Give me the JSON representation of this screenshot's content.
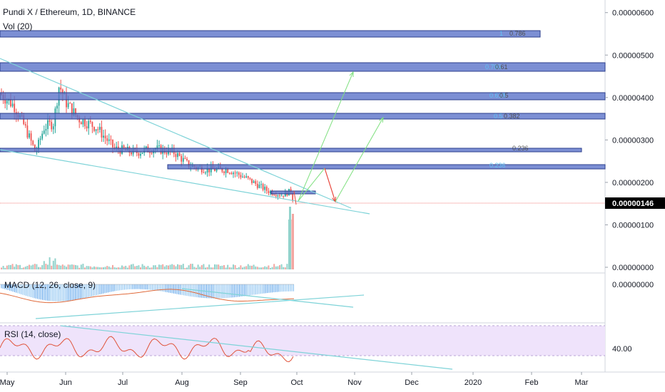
{
  "header": {
    "symbol_line": "Pundi X / Ethereum, 1D, BINANCE",
    "volume_label": "Vol (20)"
  },
  "panes": {
    "macd_label": "MACD (12, 26, close, 9)",
    "rsi_label": "RSI (14, close)"
  },
  "price_axis": {
    "ticks": [
      "0.00000600",
      "0.00000500",
      "0.00000400",
      "0.00000300",
      "0.00000200",
      "0.00000100",
      "0.00000000"
    ],
    "current_price": "0.00000146",
    "current_price_color": "#ef5350"
  },
  "macd_axis": {
    "ticks": [
      "0.00000000"
    ]
  },
  "rsi_axis": {
    "ticks": [
      "40.00"
    ]
  },
  "time_axis": {
    "labels": [
      "May",
      "Jun",
      "Jul",
      "Aug",
      "Sep",
      "Oct",
      "Nov",
      "Dec",
      "2020",
      "Feb",
      "Mar"
    ]
  },
  "fib_levels": [
    {
      "ratio": "1",
      "price_text": "0.786"
    },
    {
      "ratio": "0.786",
      "price_text": "0.61"
    },
    {
      "ratio": "0.618",
      "price_text": "0.5"
    },
    {
      "ratio": "0.5",
      "price_text": "0.382"
    },
    {
      "ratio": "",
      "price_text": "0.236"
    },
    {
      "ratio": "0.236",
      "price_text": ""
    }
  ],
  "colors": {
    "up": "#26a69a",
    "down": "#ef5350",
    "zone_fill": "#5b73c9",
    "zone_edge": "#2c3f8c",
    "trendline": "#7ed3d8",
    "fib_label": "#5ec3f5",
    "arrow_up": "#7fe07f",
    "arrow_down": "#e8443a",
    "macd_line": "#e06a3a",
    "rsi_band": "#efe3fb",
    "rsi_line": "#e0533a"
  },
  "chart_data": {
    "type": "candlestick",
    "symbol": "Pundi X / Ethereum",
    "interval": "1D",
    "exchange": "BINANCE",
    "x_range": [
      "May",
      "Mar"
    ],
    "y_range": [
      0,
      6.5e-06
    ],
    "last_price": 1.46e-06,
    "close_path": [
      {
        "month": "May",
        "close": 4.1e-06
      },
      {
        "month": "May",
        "close": 3.4e-06
      },
      {
        "month": "May",
        "close": 2.7e-06
      },
      {
        "month": "Jun",
        "close": 4.3e-06
      },
      {
        "month": "Jun",
        "close": 3.8e-06
      },
      {
        "month": "Jul",
        "close": 2.9e-06
      },
      {
        "month": "Jul",
        "close": 2.7e-06
      },
      {
        "month": "Aug",
        "close": 2.6e-06
      },
      {
        "month": "Aug",
        "close": 2.2e-06
      },
      {
        "month": "Sep",
        "close": 2.1e-06
      },
      {
        "month": "Sep",
        "close": 1.7e-06
      },
      {
        "month": "Oct",
        "close": 1.46e-06
      }
    ]
  }
}
